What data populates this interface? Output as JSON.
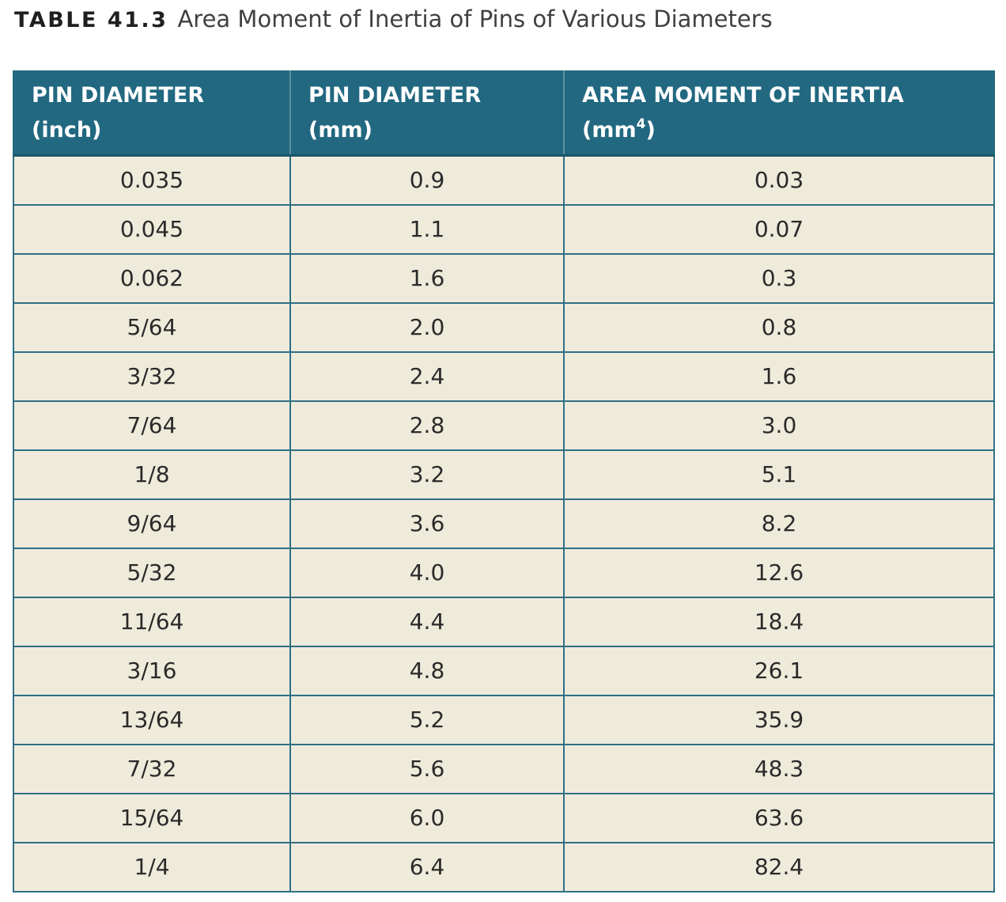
{
  "caption": {
    "label": "TABLE 41.3",
    "title": "Area Moment of Inertia of Pins of Various Diameters"
  },
  "headers": [
    {
      "line1": "PIN DIAMETER",
      "line2": "(inch)"
    },
    {
      "line1": "PIN DIAMETER",
      "line2": "(mm)"
    },
    {
      "line1": "AREA MOMENT OF INERTIA",
      "line2_pre": "(mm",
      "line2_sup": "4",
      "line2_post": ")"
    }
  ],
  "rows": [
    [
      "0.035",
      "0.9",
      "0.03"
    ],
    [
      "0.045",
      "1.1",
      "0.07"
    ],
    [
      "0.062",
      "1.6",
      "0.3"
    ],
    [
      "5/64",
      "2.0",
      "0.8"
    ],
    [
      "3/32",
      "2.4",
      "1.6"
    ],
    [
      "7/64",
      "2.8",
      "3.0"
    ],
    [
      "1/8",
      "3.2",
      "5.1"
    ],
    [
      "9/64",
      "3.6",
      "8.2"
    ],
    [
      "5/32",
      "4.0",
      "12.6"
    ],
    [
      "11/64",
      "4.4",
      "18.4"
    ],
    [
      "3/16",
      "4.8",
      "26.1"
    ],
    [
      "13/64",
      "5.2",
      "35.9"
    ],
    [
      "7/32",
      "5.6",
      "48.3"
    ],
    [
      "15/64",
      "6.0",
      "63.6"
    ],
    [
      "1/4",
      "6.4",
      "82.4"
    ]
  ],
  "colors": {
    "header_bg": "#216880",
    "row_bg": "#efebdb",
    "grid": "#2f6f86"
  }
}
